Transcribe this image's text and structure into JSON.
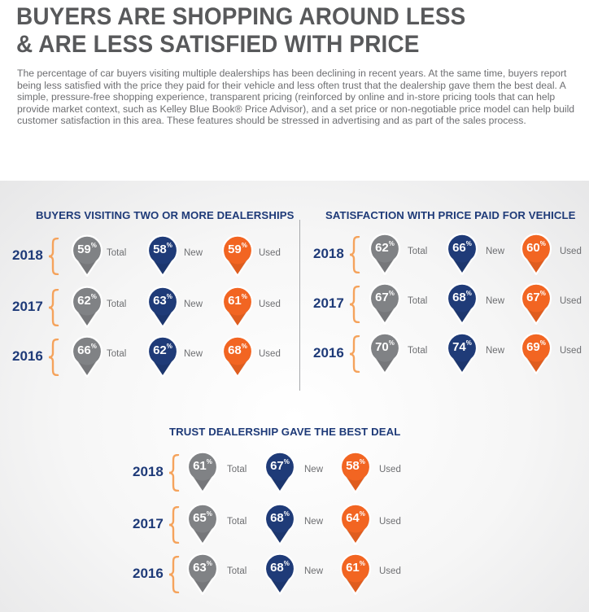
{
  "header": {
    "title_line1": "BUYERS ARE SHOPPING AROUND LESS",
    "title_line2": "& ARE LESS SATISFIED WITH PRICE",
    "intro": "The percentage of car buyers visiting multiple dealerships has been declining in recent years. At the same time, buyers report being less satisfied with the price they paid for their vehicle and less often trust that the dealership gave them the best deal. A simple, pressure-free shopping experience, transparent pricing (reinforced by online and in-store pricing tools that can help provide market context, such as Kelley Blue Book® Price Advisor), and a set price or non-negotiable price model can help build customer satisfaction in this area. These features should be stressed in advertising and as part of the sales process."
  },
  "labels": {
    "total": "Total",
    "new": "New",
    "used": "Used",
    "pct": "%"
  },
  "colors": {
    "total": "#808285",
    "new": "#1f3b78",
    "used": "#f26522",
    "brace": "#f5a35c",
    "title": "#1e3a78"
  },
  "sections": [
    {
      "title": "BUYERS VISITING TWO OR MORE DEALERSHIPS",
      "rows": [
        {
          "year": "2018",
          "total": "59",
          "new": "58",
          "used": "59"
        },
        {
          "year": "2017",
          "total": "62",
          "new": "63",
          "used": "61"
        },
        {
          "year": "2016",
          "total": "66",
          "new": "62",
          "used": "68"
        }
      ]
    },
    {
      "title": "SATISFACTION WITH PRICE PAID FOR VEHICLE",
      "rows": [
        {
          "year": "2018",
          "total": "62",
          "new": "66",
          "used": "60"
        },
        {
          "year": "2017",
          "total": "67",
          "new": "68",
          "used": "67"
        },
        {
          "year": "2016",
          "total": "70",
          "new": "74",
          "used": "69"
        }
      ]
    },
    {
      "title": "TRUST DEALERSHIP GAVE THE BEST DEAL",
      "rows": [
        {
          "year": "2018",
          "total": "61",
          "new": "67",
          "used": "58"
        },
        {
          "year": "2017",
          "total": "65",
          "new": "68",
          "used": "64"
        },
        {
          "year": "2016",
          "total": "63",
          "new": "68",
          "used": "61"
        }
      ]
    }
  ]
}
